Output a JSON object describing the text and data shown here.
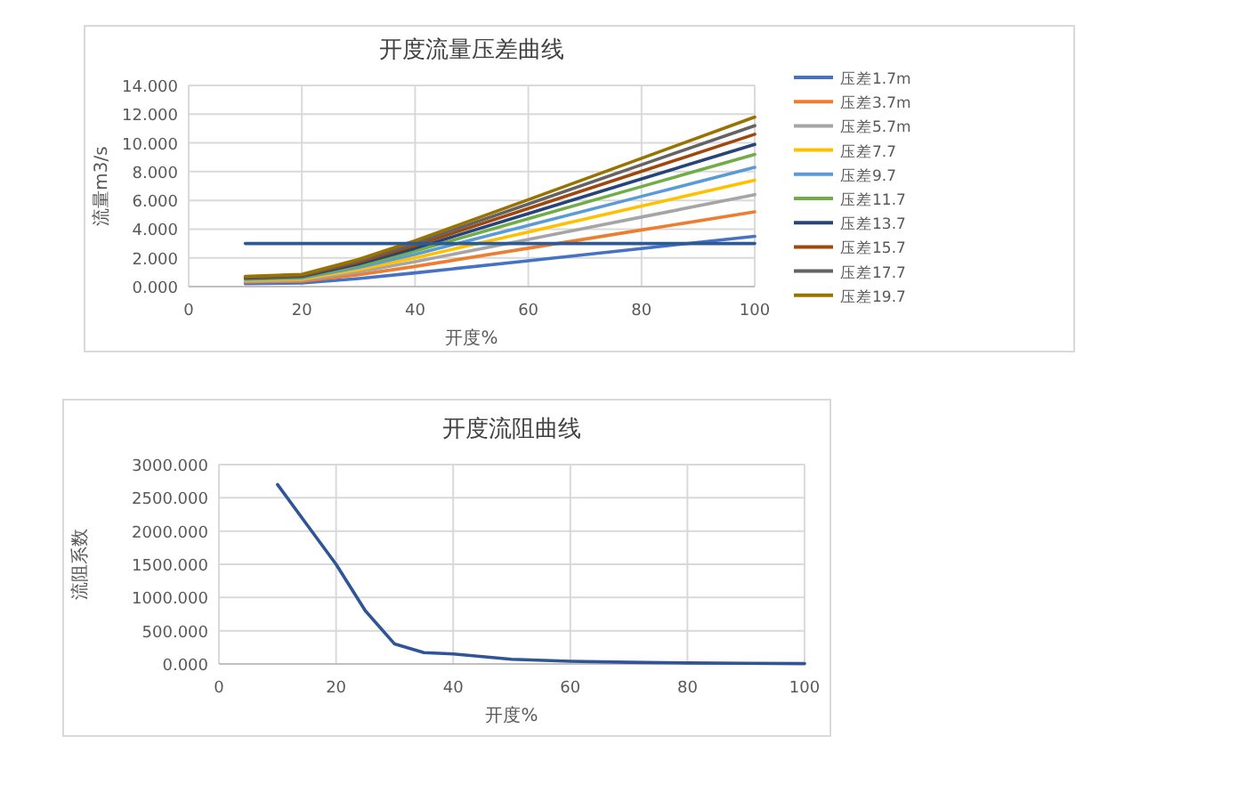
{
  "chart_data": [
    {
      "type": "line",
      "title": "开度流量压差曲线",
      "xlabel": "开度%",
      "ylabel": "流量m3/s",
      "x": [
        10,
        20,
        30,
        40,
        60,
        80,
        100
      ],
      "xlim": [
        0,
        100
      ],
      "xticks": [
        0,
        20,
        40,
        60,
        80,
        100
      ],
      "ylim": [
        0,
        14
      ],
      "yticks": [
        {
          "value": 0,
          "label": "0.000"
        },
        {
          "value": 2,
          "label": "2.000"
        },
        {
          "value": 4,
          "label": "4.000"
        },
        {
          "value": 6,
          "label": "6.000"
        },
        {
          "value": 8,
          "label": "8.000"
        },
        {
          "value": 10,
          "label": "10.000"
        },
        {
          "value": 12,
          "label": "12.000"
        },
        {
          "value": 14,
          "label": "14.000"
        }
      ],
      "grid": true,
      "legend": "right",
      "marker": "none",
      "line_style": "solid",
      "series": [
        {
          "name": "压差1.7m",
          "color": "#4472c4",
          "values": [
            0.21,
            0.25,
            0.56,
            0.95,
            1.8,
            2.65,
            3.5
          ]
        },
        {
          "name": "压差3.7m",
          "color": "#ed7d31",
          "values": [
            0.31,
            0.37,
            0.83,
            1.4,
            2.67,
            3.94,
            5.2
          ]
        },
        {
          "name": "压差5.7m",
          "color": "#a5a5a5",
          "values": [
            0.38,
            0.46,
            1.02,
            1.73,
            3.28,
            4.84,
            6.4
          ]
        },
        {
          "name": "压差7.7",
          "color": "#ffc000",
          "values": [
            0.44,
            0.53,
            1.18,
            2.0,
            3.8,
            5.6,
            7.4
          ]
        },
        {
          "name": "压差9.7",
          "color": "#5b9bd5",
          "values": [
            0.5,
            0.6,
            1.33,
            2.24,
            4.26,
            6.28,
            8.3
          ]
        },
        {
          "name": "压差11.7",
          "color": "#70ad47",
          "values": [
            0.55,
            0.66,
            1.47,
            2.48,
            4.72,
            6.96,
            9.2
          ]
        },
        {
          "name": "压差13.7",
          "color": "#264478",
          "values": [
            0.59,
            0.71,
            1.58,
            2.67,
            5.08,
            7.49,
            9.9
          ]
        },
        {
          "name": "压差15.7",
          "color": "#9e480e",
          "values": [
            0.64,
            0.76,
            1.7,
            2.86,
            5.44,
            8.02,
            10.6
          ]
        },
        {
          "name": "压差17.7",
          "color": "#636363",
          "values": [
            0.67,
            0.81,
            1.79,
            3.02,
            5.75,
            8.48,
            11.2
          ]
        },
        {
          "name": "压差19.7",
          "color": "#997300",
          "values": [
            0.71,
            0.85,
            1.89,
            3.19,
            6.05,
            8.93,
            11.8
          ]
        },
        {
          "color": "#2e5a94",
          "x": [
            10,
            100
          ],
          "values": [
            3.0,
            3.0
          ]
        }
      ]
    },
    {
      "type": "line",
      "title": "开度流阻曲线",
      "xlabel": "开度%",
      "ylabel": "流阻系数",
      "x": [
        10,
        15,
        20,
        25,
        30,
        35,
        40,
        50,
        60,
        70,
        80,
        90,
        100
      ],
      "xlim": [
        0,
        100
      ],
      "xticks": [
        0,
        20,
        40,
        60,
        80,
        100
      ],
      "ylim": [
        0,
        3000
      ],
      "yticks": [
        {
          "value": 0,
          "label": "0.000"
        },
        {
          "value": 500,
          "label": "500.000"
        },
        {
          "value": 1000,
          "label": "1000.000"
        },
        {
          "value": 1500,
          "label": "1500.000"
        },
        {
          "value": 2000,
          "label": "2000.000"
        },
        {
          "value": 2500,
          "label": "2500.000"
        },
        {
          "value": 3000,
          "label": "3000.000"
        }
      ],
      "grid": true,
      "marker": "none",
      "line_style": "solid",
      "series": [
        {
          "color": "#2f5597",
          "values": [
            2700,
            2100,
            1500,
            800,
            300,
            170,
            150,
            70,
            40,
            25,
            15,
            10,
            5
          ]
        }
      ]
    }
  ]
}
